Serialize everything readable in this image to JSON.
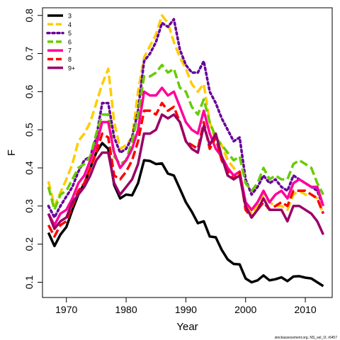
{
  "chart_data": {
    "type": "line",
    "xlabel": "Year",
    "ylabel": "F",
    "xlim": [
      1966,
      2014.5
    ],
    "ylim": [
      0.06,
      0.82
    ],
    "xticks": [
      1970,
      1980,
      1990,
      2000,
      2010
    ],
    "yticks": [
      0.1,
      0.2,
      0.3,
      0.4,
      0.5,
      0.6,
      0.7,
      0.8
    ],
    "legend_position": "top-left",
    "credit": "stockassessment.org, NS_sel_1f, r6457",
    "x": [
      1967,
      1968,
      1969,
      1970,
      1971,
      1972,
      1973,
      1974,
      1975,
      1976,
      1977,
      1978,
      1979,
      1980,
      1981,
      1982,
      1983,
      1984,
      1985,
      1986,
      1987,
      1988,
      1989,
      1990,
      1991,
      1992,
      1993,
      1994,
      1995,
      1996,
      1997,
      1998,
      1999,
      2000,
      2001,
      2002,
      2003,
      2004,
      2005,
      2006,
      2007,
      2008,
      2009,
      2010,
      2011,
      2012,
      2013
    ],
    "series": [
      {
        "name": "3",
        "color": "#000000",
        "dash": "solid",
        "values": [
          0.23,
          0.195,
          0.225,
          0.245,
          0.29,
          0.33,
          0.36,
          0.4,
          0.44,
          0.465,
          0.45,
          0.355,
          0.32,
          0.33,
          0.328,
          0.36,
          0.42,
          0.418,
          0.41,
          0.412,
          0.385,
          0.38,
          0.345,
          0.31,
          0.285,
          0.255,
          0.26,
          0.22,
          0.218,
          0.185,
          0.16,
          0.148,
          0.147,
          0.11,
          0.1,
          0.105,
          0.118,
          0.105,
          0.108,
          0.113,
          0.103,
          0.115,
          0.116,
          0.112,
          0.11,
          0.1,
          0.09
        ]
      },
      {
        "name": "4",
        "color": "#ffcc00",
        "dash": "dashed",
        "values": [
          0.365,
          0.3,
          0.335,
          0.37,
          0.41,
          0.47,
          0.49,
          0.52,
          0.57,
          0.62,
          0.66,
          0.52,
          0.45,
          0.46,
          0.48,
          0.6,
          0.69,
          0.72,
          0.75,
          0.8,
          0.78,
          0.73,
          0.69,
          0.66,
          0.62,
          0.6,
          0.62,
          0.52,
          0.47,
          0.46,
          0.42,
          0.4,
          0.38,
          0.31,
          0.28,
          0.3,
          0.33,
          0.31,
          0.3,
          0.3,
          0.29,
          0.33,
          0.34,
          0.33,
          0.33,
          0.32,
          0.28
        ]
      },
      {
        "name": "5",
        "color": "#660099",
        "dash": "dotted",
        "values": [
          0.3,
          0.27,
          0.3,
          0.325,
          0.35,
          0.39,
          0.42,
          0.43,
          0.48,
          0.57,
          0.57,
          0.48,
          0.44,
          0.45,
          0.48,
          0.55,
          0.68,
          0.7,
          0.73,
          0.78,
          0.77,
          0.79,
          0.71,
          0.67,
          0.65,
          0.65,
          0.68,
          0.6,
          0.57,
          0.53,
          0.5,
          0.47,
          0.48,
          0.37,
          0.33,
          0.35,
          0.38,
          0.36,
          0.37,
          0.35,
          0.34,
          0.38,
          0.37,
          0.36,
          0.35,
          0.34,
          0.3
        ]
      },
      {
        "name": "6",
        "color": "#66cc00",
        "dash": "dashed",
        "values": [
          0.35,
          0.29,
          0.33,
          0.34,
          0.37,
          0.4,
          0.41,
          0.43,
          0.49,
          0.54,
          0.54,
          0.43,
          0.41,
          0.42,
          0.47,
          0.54,
          0.64,
          0.64,
          0.65,
          0.67,
          0.65,
          0.66,
          0.61,
          0.6,
          0.56,
          0.54,
          0.58,
          0.52,
          0.48,
          0.46,
          0.44,
          0.42,
          0.43,
          0.36,
          0.34,
          0.36,
          0.4,
          0.37,
          0.38,
          0.37,
          0.37,
          0.41,
          0.42,
          0.41,
          0.4,
          0.36,
          0.33
        ]
      },
      {
        "name": "7",
        "color": "#ff0099",
        "dash": "solid",
        "values": [
          0.28,
          0.25,
          0.28,
          0.29,
          0.32,
          0.36,
          0.38,
          0.42,
          0.46,
          0.52,
          0.52,
          0.44,
          0.4,
          0.42,
          0.45,
          0.5,
          0.6,
          0.59,
          0.59,
          0.61,
          0.59,
          0.6,
          0.56,
          0.52,
          0.5,
          0.49,
          0.55,
          0.49,
          0.45,
          0.43,
          0.4,
          0.38,
          0.39,
          0.31,
          0.29,
          0.31,
          0.34,
          0.31,
          0.33,
          0.34,
          0.32,
          0.36,
          0.37,
          0.36,
          0.35,
          0.35,
          0.3
        ]
      },
      {
        "name": "8",
        "color": "#ff0000",
        "dash": "dashed",
        "values": [
          0.25,
          0.22,
          0.25,
          0.26,
          0.3,
          0.34,
          0.36,
          0.4,
          0.44,
          0.49,
          0.48,
          0.38,
          0.37,
          0.39,
          0.42,
          0.47,
          0.55,
          0.55,
          0.54,
          0.57,
          0.55,
          0.56,
          0.52,
          0.47,
          0.46,
          0.45,
          0.52,
          0.45,
          0.48,
          0.42,
          0.39,
          0.37,
          0.39,
          0.29,
          0.27,
          0.29,
          0.31,
          0.29,
          0.3,
          0.31,
          0.3,
          0.34,
          0.34,
          0.34,
          0.33,
          0.32,
          0.28
        ]
      },
      {
        "name": "9+",
        "color": "#990066",
        "dash": "solid",
        "values": [
          0.28,
          0.24,
          0.26,
          0.27,
          0.31,
          0.33,
          0.35,
          0.38,
          0.42,
          0.44,
          0.44,
          0.36,
          0.33,
          0.35,
          0.37,
          0.41,
          0.49,
          0.49,
          0.5,
          0.54,
          0.53,
          0.54,
          0.52,
          0.47,
          0.45,
          0.44,
          0.51,
          0.46,
          0.49,
          0.43,
          0.38,
          0.37,
          0.38,
          0.3,
          0.27,
          0.29,
          0.32,
          0.29,
          0.29,
          0.29,
          0.26,
          0.3,
          0.3,
          0.29,
          0.28,
          0.26,
          0.225
        ]
      }
    ]
  }
}
